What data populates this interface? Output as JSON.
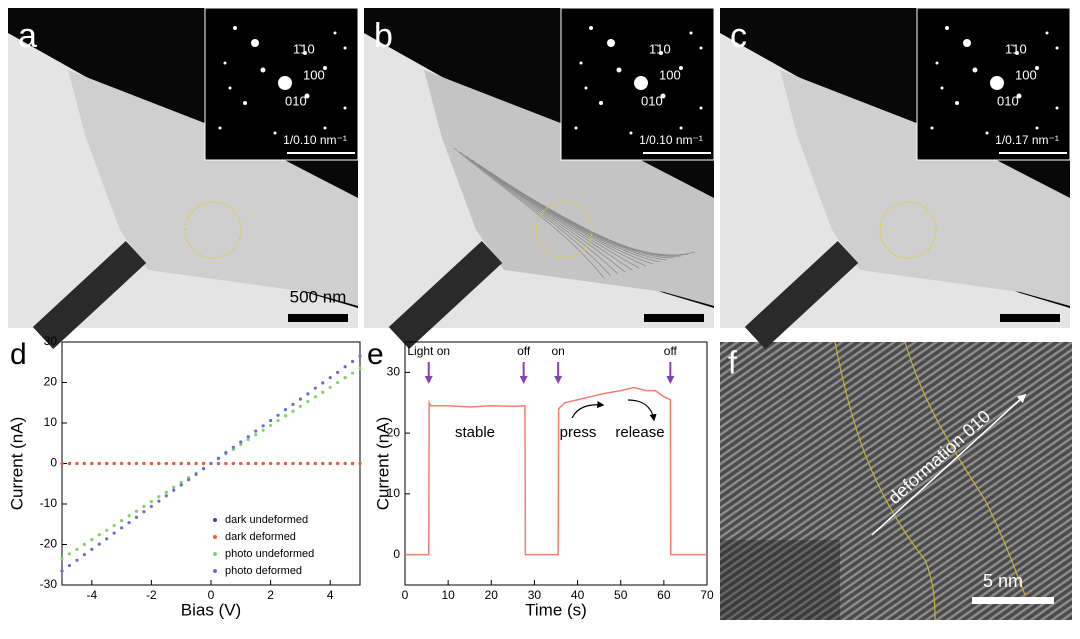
{
  "panels": {
    "a": {
      "label": "a",
      "inset": [
        "1̄10",
        "100",
        "010"
      ],
      "inset_scale": "1/0.10 nm⁻¹",
      "scale": "500 nm"
    },
    "b": {
      "label": "b",
      "inset": [
        "1̄10",
        "100",
        "010"
      ],
      "inset_scale": "1/0.10 nm⁻¹"
    },
    "c": {
      "label": "c",
      "inset": [
        "1̄10",
        "100",
        "010"
      ],
      "inset_scale": "1/0.17 nm⁻¹"
    },
    "f": {
      "label": "f",
      "annotation": "deformation 010",
      "scale": "5 nm"
    }
  },
  "chart_data": [
    {
      "type": "scatter",
      "label": "d",
      "xlabel": "Bias (V)",
      "ylabel": "Current (nA)",
      "xlim": [
        -5,
        5
      ],
      "xticks": [
        -4,
        -2,
        0,
        2,
        4
      ],
      "ylim": [
        -30,
        30
      ],
      "yticks": [
        -30,
        -20,
        -10,
        0,
        10,
        20,
        30
      ],
      "legend": "lower right",
      "x": [
        -5,
        -4.75,
        -4.5,
        -4.25,
        -4,
        -3.75,
        -3.5,
        -3.25,
        -3,
        -2.75,
        -2.5,
        -2.25,
        -2,
        -1.75,
        -1.5,
        -1.25,
        -1,
        -0.75,
        -0.5,
        -0.25,
        0,
        0.25,
        0.5,
        0.75,
        1,
        1.25,
        1.5,
        1.75,
        2,
        2.25,
        2.5,
        2.75,
        3,
        3.25,
        3.5,
        3.75,
        4,
        4.25,
        4.5,
        4.75,
        5
      ],
      "series": [
        {
          "name": "dark undeformed",
          "color": "#3b4a7a",
          "values": [
            0,
            0,
            0,
            0,
            0,
            0,
            0,
            0,
            0,
            0,
            0,
            0,
            0,
            0,
            0,
            0,
            0,
            0,
            0,
            0,
            0,
            0,
            0,
            0,
            0,
            0,
            0,
            0,
            0,
            0,
            0,
            0,
            0,
            0,
            0,
            0,
            0,
            0,
            0,
            0,
            0
          ]
        },
        {
          "name": "dark deformed",
          "color": "#e8603c",
          "values": [
            0,
            0,
            0,
            0,
            0,
            0,
            0,
            0,
            0,
            0,
            0,
            0,
            0,
            0,
            0,
            0,
            0,
            0,
            0,
            0,
            0,
            0,
            0,
            0,
            0,
            0,
            0,
            0,
            0,
            0,
            0,
            0,
            0,
            0,
            0,
            0,
            0,
            0,
            0,
            0,
            0
          ]
        },
        {
          "name": "photo undeformed",
          "color": "#7fd36b",
          "values": [
            -23.5,
            -22.3,
            -21.2,
            -20.0,
            -18.8,
            -17.6,
            -16.5,
            -15.3,
            -14.1,
            -12.9,
            -11.8,
            -10.6,
            -9.4,
            -8.2,
            -7.1,
            -5.9,
            -4.7,
            -3.5,
            -2.4,
            -1.2,
            0,
            1.2,
            2.4,
            3.5,
            4.7,
            5.9,
            7.1,
            8.2,
            9.4,
            10.6,
            11.8,
            12.9,
            14.1,
            15.3,
            16.5,
            17.6,
            18.8,
            20.0,
            21.2,
            22.3,
            23.5
          ]
        },
        {
          "name": "photo deformed",
          "color": "#6b6bd8",
          "values": [
            -26.5,
            -25.2,
            -23.9,
            -22.5,
            -21.2,
            -19.9,
            -18.6,
            -17.2,
            -15.9,
            -14.6,
            -13.3,
            -11.9,
            -10.6,
            -9.3,
            -8.0,
            -6.6,
            -5.3,
            -4.0,
            -2.7,
            -1.3,
            0,
            1.3,
            2.7,
            4.0,
            5.3,
            6.6,
            8.0,
            9.3,
            10.6,
            11.9,
            13.3,
            14.6,
            15.9,
            17.2,
            18.6,
            19.9,
            21.2,
            22.5,
            23.9,
            25.2,
            26.5
          ]
        }
      ]
    },
    {
      "type": "line",
      "label": "e",
      "xlabel": "Time (s)",
      "ylabel": "Current (nA)",
      "xlim": [
        0,
        70
      ],
      "xticks": [
        0,
        10,
        20,
        30,
        40,
        50,
        60,
        70
      ],
      "ylim": [
        -5,
        35
      ],
      "yticks": [
        0,
        10,
        20,
        30
      ],
      "color": "#f08070",
      "x": [
        0,
        5.5,
        5.6,
        6,
        10,
        15,
        20,
        25,
        27.8,
        27.9,
        35.5,
        35.6,
        37,
        40,
        43,
        46,
        50,
        53,
        56,
        58,
        60,
        61.5,
        61.6,
        70
      ],
      "values": [
        0,
        0,
        25,
        24.5,
        24.5,
        24.3,
        24.5,
        24.4,
        24.5,
        0,
        0,
        24,
        25,
        25.5,
        26,
        26.5,
        27,
        27.5,
        27,
        27,
        26,
        25.5,
        0,
        0
      ],
      "markers": [
        {
          "label": "Light on",
          "x": 5.5
        },
        {
          "label": "off",
          "x": 27.5
        },
        {
          "label": "on",
          "x": 35.5
        },
        {
          "label": "off",
          "x": 61.5
        }
      ],
      "annotations": [
        "stable",
        "press",
        "release"
      ]
    }
  ]
}
